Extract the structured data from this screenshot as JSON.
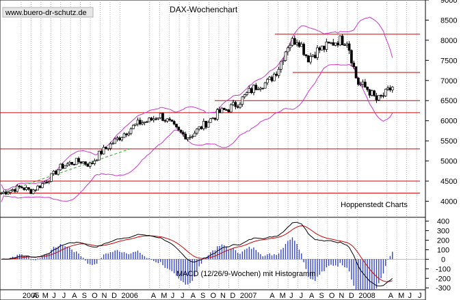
{
  "watermark": "www.buero-dr-schutz.de",
  "chart_data": [
    {
      "type": "candlestick",
      "title": "DAX-Wochenchart",
      "source": "Hoppenstedt Charts",
      "ylim": [
        3600,
        9000
      ],
      "y_ticks": [
        4000,
        4500,
        5000,
        5500,
        6000,
        6500,
        7000,
        7500,
        8000,
        8500,
        9000
      ],
      "y_tick_labels": [
        "4000",
        "4500",
        "5000",
        "5500",
        "6000",
        "6500",
        "7000",
        "7500",
        "8000",
        "8500",
        "9000"
      ],
      "x_months": [
        "2005",
        "A",
        "M",
        "J",
        "J",
        "A",
        "S",
        "O",
        "N",
        "D",
        "2006",
        "A",
        "M",
        "J",
        "J",
        "A",
        "S",
        "O",
        "N",
        "D",
        "2007",
        "A",
        "M",
        "J",
        "J",
        "A",
        "S",
        "O",
        "N",
        "D",
        "2008",
        "A",
        "M",
        "J",
        "J"
      ],
      "x_month_index": [
        2,
        3,
        4,
        5,
        6,
        7,
        8,
        9,
        10,
        11,
        12,
        15,
        16,
        17,
        18,
        19,
        20,
        21,
        22,
        23,
        24,
        27,
        28,
        29,
        30,
        31,
        32,
        33,
        34,
        35,
        36,
        39,
        40,
        41,
        42
      ],
      "x_month_range": [
        0,
        42.9
      ],
      "series": [
        {
          "name": "",
          "kind": "close_anchors",
          "month": [
            0,
            1,
            2,
            3,
            4,
            5,
            6,
            7,
            8,
            9,
            10,
            11,
            12,
            13,
            14,
            15,
            16,
            17,
            18,
            19,
            20,
            21,
            22,
            23,
            24,
            25,
            26,
            27,
            28,
            29,
            30,
            31,
            32,
            33,
            34,
            35,
            36,
            37,
            38,
            39,
            39.6
          ],
          "values": [
            4200,
            4280,
            4350,
            4250,
            4400,
            4600,
            4850,
            4950,
            5000,
            4900,
            5200,
            5400,
            5600,
            5800,
            5950,
            6000,
            6150,
            5950,
            5700,
            5600,
            5800,
            6000,
            6200,
            6300,
            6450,
            6700,
            6900,
            6950,
            7300,
            7900,
            8050,
            7550,
            7750,
            7850,
            8000,
            8000,
            6950,
            6800,
            6500,
            6700,
            6850
          ]
        },
        {
          "name": "",
          "kind": "support_resistance",
          "values": [
            8150,
            7200,
            6500,
            6200,
            5300,
            4500,
            4200
          ]
        },
        {
          "name": "",
          "kind": "trend",
          "x": [
            0,
            13
          ],
          "values": [
            4200,
            5300
          ]
        }
      ]
    },
    {
      "type": "macd",
      "title": "MACD (12/26/9-Wochen) mit Histogramm",
      "ylim": [
        -320,
        440
      ],
      "y_ticks": [
        400,
        300,
        200,
        100,
        0,
        -100,
        -200,
        -300
      ],
      "y_tick_labels": [
        "400",
        "300",
        "200",
        "100",
        "0",
        "-100",
        "-200",
        "-300"
      ]
    }
  ]
}
